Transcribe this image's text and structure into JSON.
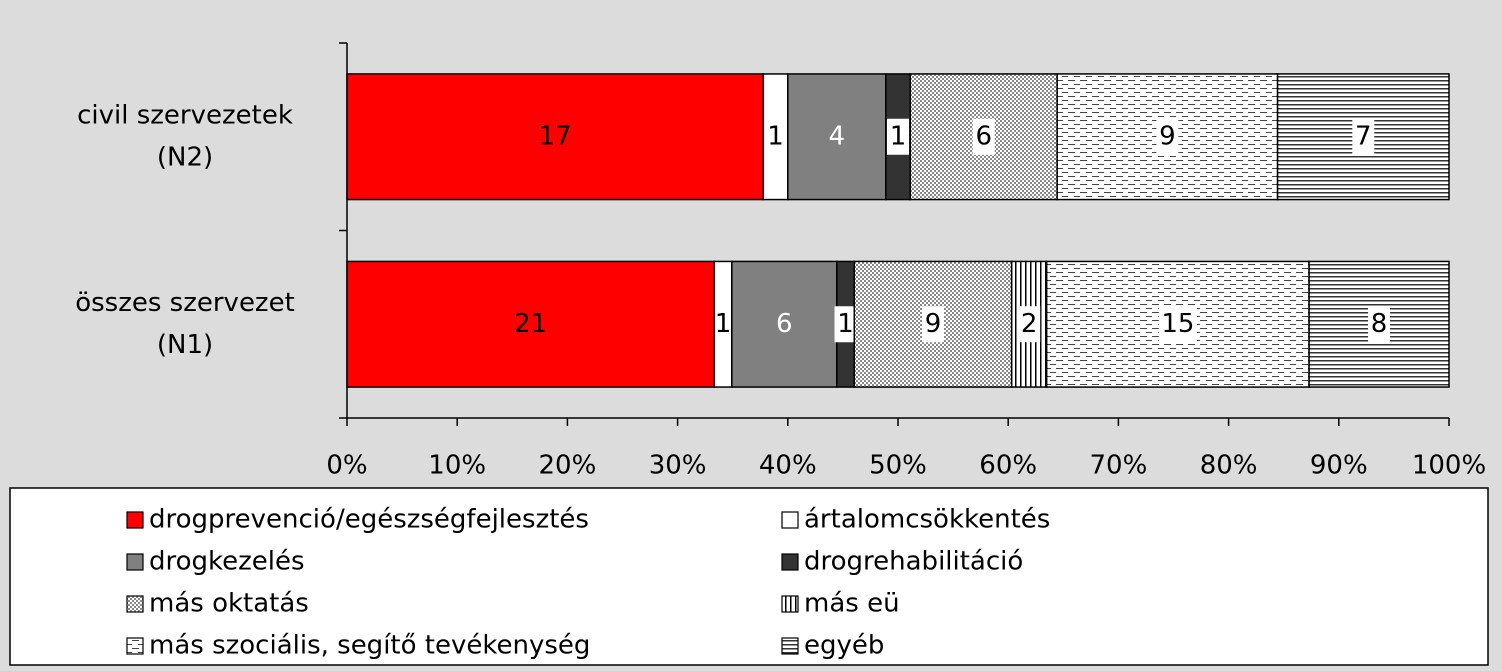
{
  "chart_data": {
    "type": "bar",
    "orientation": "horizontal",
    "stacking": "percent",
    "categories": [
      [
        "civil szervezetek",
        "(N2)"
      ],
      [
        "összes szervezet",
        "(N1)"
      ]
    ],
    "series": [
      {
        "name": "drogprevenció/egészségfejlesztés",
        "color": "#ff0000",
        "values": [
          17,
          21
        ]
      },
      {
        "name": "ártalomcsökkentés",
        "color": "#ffffff",
        "values": [
          1,
          1
        ]
      },
      {
        "name": "drogkezelés",
        "color": "#808080",
        "values": [
          4,
          6
        ]
      },
      {
        "name": "drogrehabilitáció",
        "color": "#333333",
        "values": [
          1,
          1
        ]
      },
      {
        "name": "más oktatás",
        "color": "#000000",
        "pattern": "checker",
        "values": [
          6,
          9
        ]
      },
      {
        "name": "más eü",
        "color": "#000000",
        "pattern": "vertical",
        "values": [
          null,
          2
        ]
      },
      {
        "name": "más szociális, segítő tevékenység",
        "color": "#000000",
        "pattern": "dashed",
        "values": [
          9,
          15
        ]
      },
      {
        "name": "egyéb",
        "color": "#000000",
        "pattern": "horizontal",
        "values": [
          7,
          8
        ]
      }
    ],
    "xlim": [
      0,
      100
    ],
    "xticks": [
      {
        "value": 0,
        "label": "0%"
      },
      {
        "value": 10,
        "label": "10%"
      },
      {
        "value": 20,
        "label": "20%"
      },
      {
        "value": 30,
        "label": "30%"
      },
      {
        "value": 40,
        "label": "40%"
      },
      {
        "value": 50,
        "label": "50%"
      },
      {
        "value": 60,
        "label": "60%"
      },
      {
        "value": 70,
        "label": "70%"
      },
      {
        "value": 80,
        "label": "80%"
      },
      {
        "value": 90,
        "label": "90%"
      },
      {
        "value": 100,
        "label": "100%"
      }
    ],
    "legend": "bottom"
  }
}
